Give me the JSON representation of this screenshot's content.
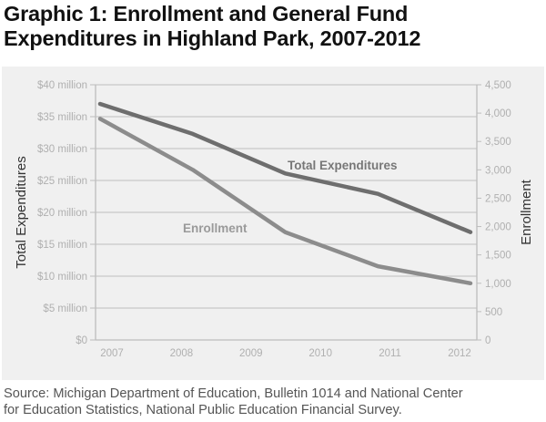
{
  "title_line1": "Graphic 1: Enrollment and General Fund",
  "title_line2": "Expenditures in Highland Park, 2007-2012",
  "source_line1": "Source: Michigan Department of Education, Bulletin 1014 and National Center",
  "source_line2": "for Education Statistics, National Public Education Financial Survey.",
  "chart_data": {
    "type": "line",
    "title": "Graphic 1: Enrollment and General Fund Expenditures in Highland Park, 2007-2012",
    "x": [
      "2007",
      "2008",
      "2009",
      "2010",
      "2011",
      "2012"
    ],
    "xlabel": "",
    "ylabel": "Total Expenditures",
    "y2label": "Enrollment",
    "ylim": [
      0,
      40
    ],
    "y2lim": [
      0,
      4500
    ],
    "yticks": [
      "$0",
      "$5 million",
      "$10 million",
      "$15 million",
      "$20 million",
      "$25 million",
      "$30 million",
      "$35 million",
      "$40 million"
    ],
    "ytick_values": [
      0,
      5,
      10,
      15,
      20,
      25,
      30,
      35,
      40
    ],
    "y2ticks": [
      "0",
      "500",
      "1,000",
      "1,500",
      "2,000",
      "2,500",
      "3,000",
      "3,500",
      "4,000",
      "4,500"
    ],
    "y2tick_values": [
      0,
      500,
      1000,
      1500,
      2000,
      2500,
      3000,
      3500,
      4000,
      4500
    ],
    "grid": true,
    "legend": "inline labels",
    "series": [
      {
        "name": "Total Expenditures",
        "axis": "left",
        "unit": "$ million",
        "color": "#6e6e6e",
        "label_color": "#777777",
        "values": [
          37,
          32.3,
          26.1,
          22.9,
          16.9
        ],
        "point_positions": [
          0,
          0.25,
          0.5,
          0.75,
          1
        ]
      },
      {
        "name": "Enrollment",
        "axis": "right",
        "unit": "students",
        "color": "#8c8c8c",
        "label_color": "#999999",
        "values": [
          3900,
          3000,
          1900,
          1300,
          1000
        ],
        "point_positions": [
          0,
          0.25,
          0.5,
          0.75,
          1
        ]
      }
    ],
    "annotations": [
      "Total Expenditures",
      "Enrollment"
    ]
  }
}
